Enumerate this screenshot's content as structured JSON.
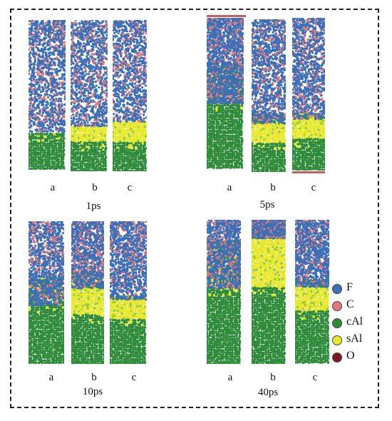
{
  "panels": [
    {
      "time": "1ps",
      "columns": [
        "a",
        "b",
        "c"
      ]
    },
    {
      "time": "5ps",
      "columns": [
        "a",
        "b",
        "c"
      ]
    },
    {
      "time": "10ps",
      "columns": [
        "a",
        "b",
        "c"
      ]
    },
    {
      "time": "40ps",
      "columns": [
        "a",
        "b",
        "c"
      ]
    }
  ],
  "legend": [
    {
      "label": "F",
      "color": "#3b6fb8"
    },
    {
      "label": "C",
      "color": "#e07a7a"
    },
    {
      "label": "cAl",
      "color": "#2e8b3a"
    },
    {
      "label": "sAl",
      "color": "#e8e82a"
    },
    {
      "label": "O",
      "color": "#7a1a24"
    }
  ]
}
